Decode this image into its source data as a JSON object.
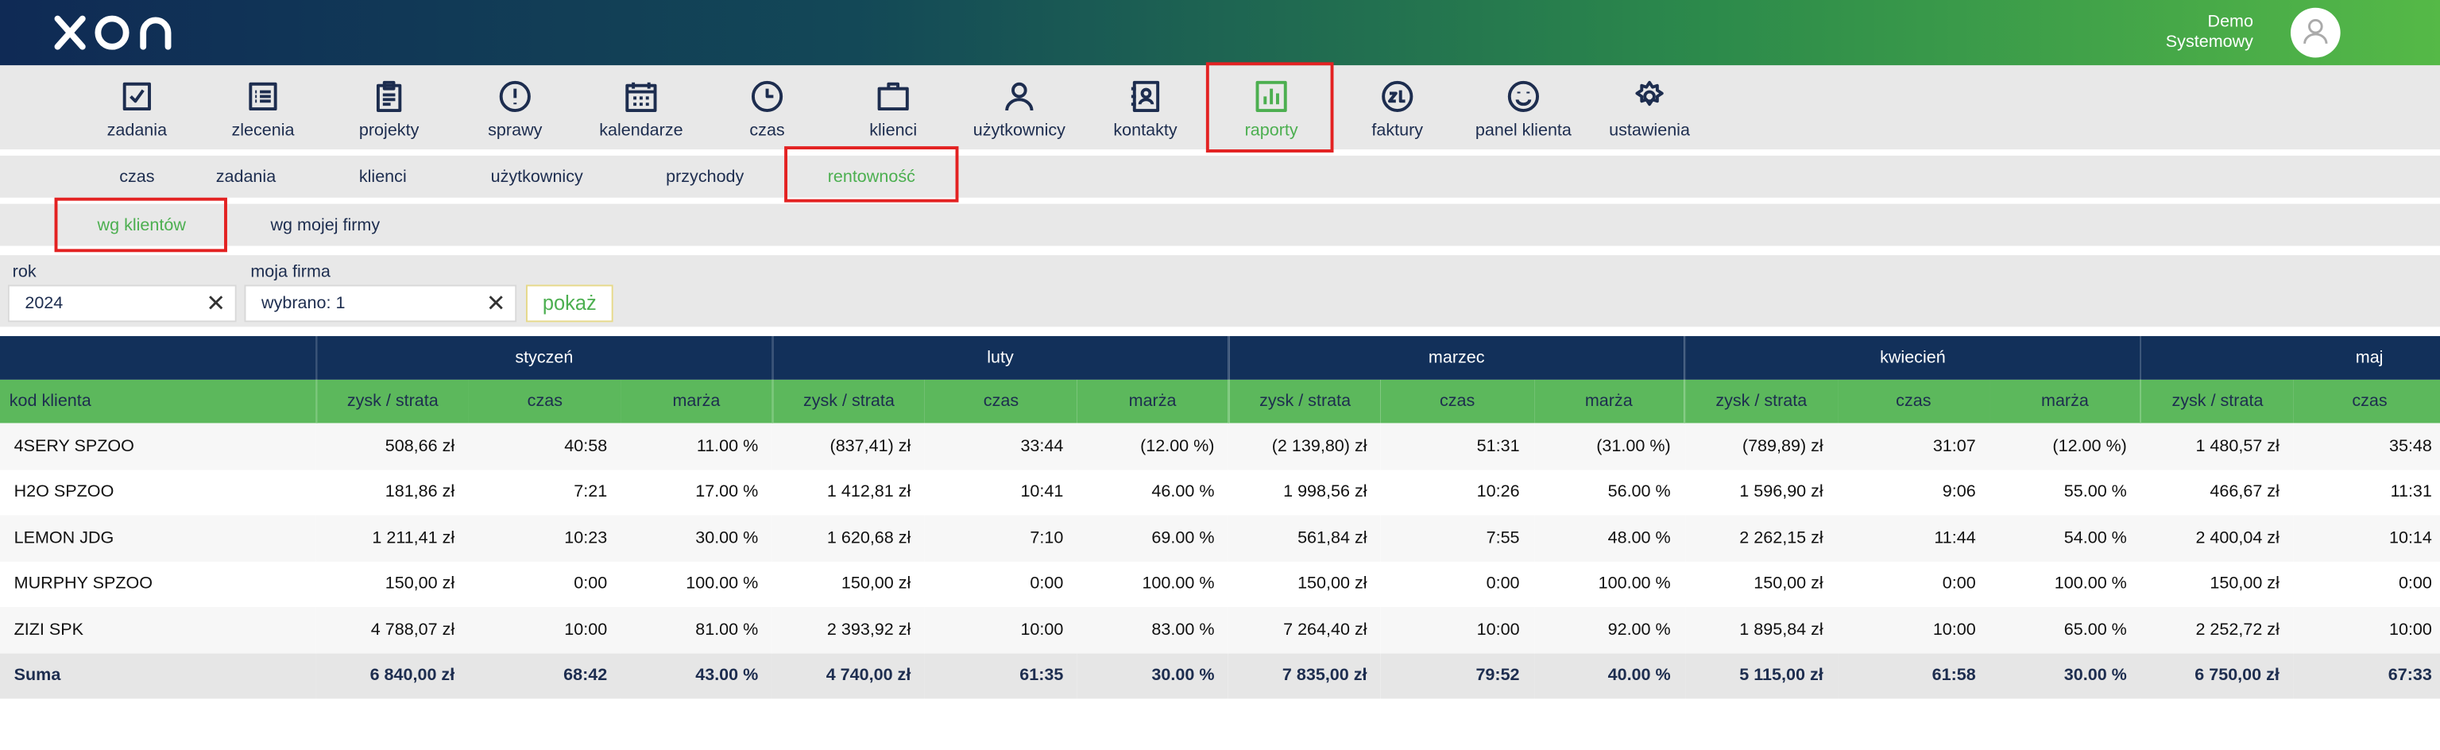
{
  "header": {
    "user": [
      "Demo",
      "Systemowy"
    ]
  },
  "nav": {
    "items": [
      "zadania",
      "zlecenia",
      "projekty",
      "sprawy",
      "kalendarze",
      "czas",
      "klienci",
      "użytkownicy",
      "kontakty",
      "raporty",
      "faktury",
      "panel klienta",
      "ustawienia"
    ],
    "active": 9
  },
  "subnav": {
    "items": [
      "czas",
      "zadania",
      "klienci",
      "użytkownicy",
      "przychody",
      "rentowność"
    ],
    "active": 5
  },
  "subsubnav": {
    "items": [
      "wg klientów",
      "wg mojej firmy"
    ],
    "active": 0
  },
  "filters": {
    "fields": [
      {
        "label": "rok",
        "value": "2024"
      },
      {
        "label": "moja firma",
        "value": "wybrano: 1"
      }
    ],
    "button": "pokaż"
  },
  "table": {
    "first_header": "kod klienta",
    "months": [
      "styczeń",
      "luty",
      "marzec",
      "kwiecień",
      "maj"
    ],
    "subheaders": [
      "zysk / strata",
      "czas",
      "marża"
    ],
    "rows": [
      [
        "4SERY SPZOO",
        "508,66 zł",
        "40:58",
        "11.00 %",
        "(837,41) zł",
        "33:44",
        "(12.00 %)",
        "(2 139,80) zł",
        "51:31",
        "(31.00 %)",
        "(789,89) zł",
        "31:07",
        "(12.00 %)",
        "1 480,57 zł",
        "35:48"
      ],
      [
        "H2O SPZOO",
        "181,86 zł",
        "7:21",
        "17.00 %",
        "1 412,81 zł",
        "10:41",
        "46.00 %",
        "1 998,56 zł",
        "10:26",
        "56.00 %",
        "1 596,90 zł",
        "9:06",
        "55.00 %",
        "466,67 zł",
        "11:31"
      ],
      [
        "LEMON JDG",
        "1 211,41 zł",
        "10:23",
        "30.00 %",
        "1 620,68 zł",
        "7:10",
        "69.00 %",
        "561,84 zł",
        "7:55",
        "48.00 %",
        "2 262,15 zł",
        "11:44",
        "54.00 %",
        "2 400,04 zł",
        "10:14"
      ],
      [
        "MURPHY SPZOO",
        "150,00 zł",
        "0:00",
        "100.00 %",
        "150,00 zł",
        "0:00",
        "100.00 %",
        "150,00 zł",
        "0:00",
        "100.00 %",
        "150,00 zł",
        "0:00",
        "100.00 %",
        "150,00 zł",
        "0:00"
      ],
      [
        "ZIZI SPK",
        "4 788,07 zł",
        "10:00",
        "81.00 %",
        "2 393,92 zł",
        "10:00",
        "83.00 %",
        "7 264,40 zł",
        "10:00",
        "92.00 %",
        "1 895,84 zł",
        "10:00",
        "65.00 %",
        "2 252,72 zł",
        "10:00"
      ]
    ],
    "total": [
      "Suma",
      "6 840,00 zł",
      "68:42",
      "43.00 %",
      "4 740,00 zł",
      "61:35",
      "30.00 %",
      "7 835,00 zł",
      "79:52",
      "40.00 %",
      "5 115,00 zł",
      "61:58",
      "30.00 %",
      "6 750,00 zł",
      "67:33"
    ]
  }
}
